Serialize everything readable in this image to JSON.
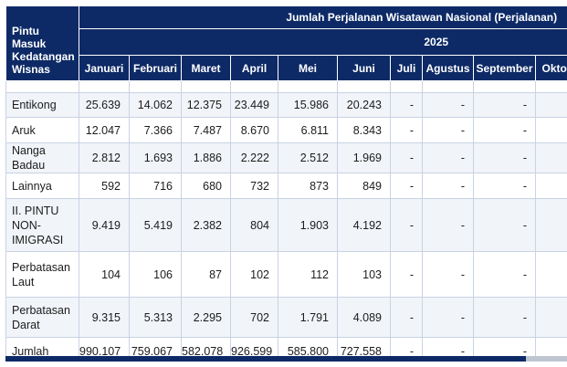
{
  "header": {
    "corner_label": "Pintu Masuk Kedatangan Wisnas",
    "group_title": "Jumlah Perjalanan Wisatawan Nasional (Perjalanan)",
    "year": "2025",
    "months": [
      "Januari",
      "Februari",
      "Maret",
      "April",
      "Mei",
      "Juni",
      "Juli",
      "Agustus",
      "September",
      "Oktober"
    ]
  },
  "rows": [
    {
      "label": "Entikong",
      "values": [
        "25.639",
        "14.062",
        "12.375",
        "23.449",
        "15.986",
        "20.243",
        "-",
        "-",
        "-",
        "-"
      ]
    },
    {
      "label": "Aruk",
      "values": [
        "12.047",
        "7.366",
        "7.487",
        "8.670",
        "6.811",
        "8.343",
        "-",
        "-",
        "-",
        "-"
      ]
    },
    {
      "label": "Nanga Badau",
      "values": [
        "2.812",
        "1.693",
        "1.886",
        "2.222",
        "2.512",
        "1.969",
        "-",
        "-",
        "-",
        "-"
      ]
    },
    {
      "label": "Lainnya",
      "values": [
        "592",
        "716",
        "680",
        "732",
        "873",
        "849",
        "-",
        "-",
        "-",
        "-"
      ]
    },
    {
      "label": "II. PINTU NON-IMIGRASI",
      "values": [
        "9.419",
        "5.419",
        "2.382",
        "804",
        "1.903",
        "4.192",
        "-",
        "-",
        "-",
        "-"
      ]
    },
    {
      "label": "Perbatasan Laut",
      "values": [
        "104",
        "106",
        "87",
        "102",
        "112",
        "103",
        "-",
        "-",
        "-",
        "-"
      ]
    },
    {
      "label": "Perbatasan Darat",
      "values": [
        "9.315",
        "5.313",
        "2.295",
        "702",
        "1.791",
        "4.089",
        "-",
        "-",
        "-",
        "-"
      ]
    },
    {
      "label": "Jumlah",
      "values": [
        "990.107",
        "759.067",
        "582.078",
        "926.599",
        "585.800",
        "727.558",
        "-",
        "-",
        "-",
        "-"
      ]
    }
  ],
  "colors": {
    "header_bg": "#0d2a66",
    "row_alt_bg": "#f1f4f9",
    "border": "#c9d3e3"
  }
}
